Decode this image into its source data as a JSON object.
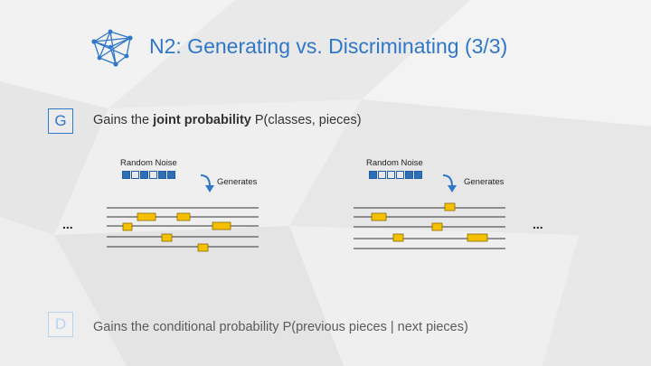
{
  "title": "N2: Generating vs. Discriminating (3/3)",
  "generative": {
    "letter": "G",
    "text_prefix": "Gains the ",
    "text_bold": "joint probability",
    "text_suffix": " P(classes, pieces)"
  },
  "discriminative": {
    "letter": "D",
    "text": "Gains the conditional probability P(previous pieces | next pieces)"
  },
  "examples": [
    {
      "noise_label": "Random Noise",
      "noise_cells": [
        1,
        0,
        1,
        0,
        1,
        1
      ],
      "generates_label": "Generates"
    },
    {
      "noise_label": "Random Noise",
      "noise_cells": [
        1,
        0,
        0,
        0,
        1,
        1
      ],
      "generates_label": "Generates"
    }
  ],
  "ellipsis_left": "...",
  "ellipsis_right": "...",
  "colors": {
    "accent": "#2f77c8",
    "note": "#f5c000",
    "note_border": "#8a6a00",
    "noise_on": "#2f6fb8"
  },
  "icons": {
    "logo": "network-graph-icon",
    "arrow": "curved-arrow-down-icon"
  }
}
